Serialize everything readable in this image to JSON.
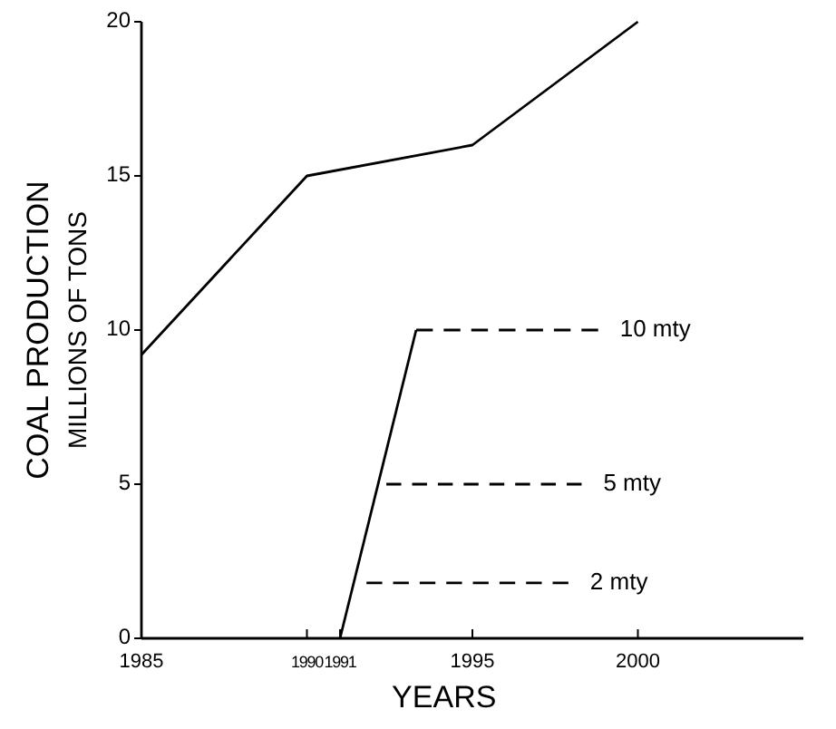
{
  "chart_data": {
    "type": "line",
    "xlabel": "YEARS",
    "ylabel": "COAL PRODUCTION\nMILLIONS OF TONS",
    "xlim": [
      1985,
      2005
    ],
    "xticks": [
      1985,
      1990,
      1991,
      1995,
      2000
    ],
    "ylim": [
      0,
      20
    ],
    "yticks": [
      0,
      5,
      10,
      15,
      20
    ],
    "series": [
      {
        "color": "#000000",
        "line_style": "solid",
        "x": [
          1985,
          1990,
          1995,
          2000
        ],
        "values": [
          9.2,
          15,
          16,
          20
        ]
      },
      {
        "color": "#000000",
        "line_style": "solid",
        "x": [
          1991,
          1993.3
        ],
        "values": [
          0,
          10
        ]
      },
      {
        "name": "10 mty",
        "color": "#000000",
        "line_style": "dashed",
        "x": [
          1993.3,
          1998.8
        ],
        "values": [
          10,
          10
        ]
      },
      {
        "name": "5 mty",
        "color": "#000000",
        "line_style": "dashed",
        "x": [
          1992.4,
          1998.3
        ],
        "values": [
          5,
          5
        ]
      },
      {
        "name": "2 mty",
        "color": "#000000",
        "line_style": "dashed",
        "x": [
          1991.8,
          1997.9
        ],
        "values": [
          1.8,
          1.8
        ]
      }
    ]
  }
}
